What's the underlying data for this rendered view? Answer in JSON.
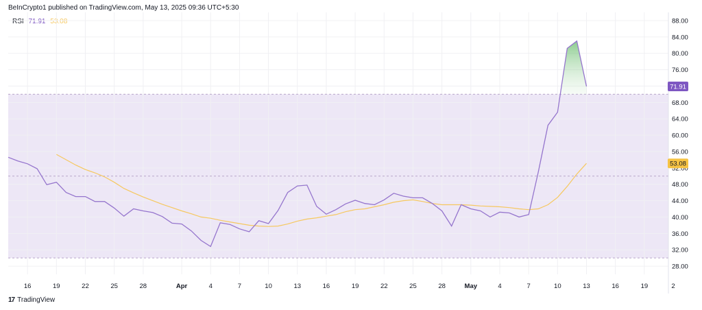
{
  "header": {
    "publisher": "BeInCrypto1 published on TradingView.com, May 13, 2025 09:36 UTC+5:30"
  },
  "legend": {
    "name": "RSI",
    "rsi_value": "71.91",
    "ma_value": "53.08"
  },
  "footer": {
    "logo": "17",
    "brand": "TradingView"
  },
  "colors": {
    "rsi": "#7e57c2",
    "ma": "#f6c85f",
    "band": "#ede7f6",
    "grid": "#f0f0f3",
    "badge_ma": "#f6c343"
  },
  "chart_data": {
    "type": "line",
    "ylim": [
      26,
      90
    ],
    "yticks": [
      28,
      32,
      36,
      40,
      44,
      48,
      52,
      56,
      60,
      64,
      68,
      72,
      76,
      80,
      84,
      88
    ],
    "ytick_labels": [
      "28.00",
      "32.00",
      "36.00",
      "40.00",
      "44.00",
      "48.00",
      "52.00",
      "56.00",
      "60.00",
      "64.00",
      "68.00",
      "72.00",
      "76.00",
      "80.00",
      "84.00",
      "88.00"
    ],
    "bands": {
      "upper": 70,
      "middle": 50,
      "lower": 30
    },
    "xlim": [
      0,
      68.5
    ],
    "xticks": [
      {
        "x": 2,
        "label": "16"
      },
      {
        "x": 5,
        "label": "19"
      },
      {
        "x": 8,
        "label": "22"
      },
      {
        "x": 11,
        "label": "25"
      },
      {
        "x": 14,
        "label": "28"
      },
      {
        "x": 18,
        "label": "Apr"
      },
      {
        "x": 21,
        "label": "4"
      },
      {
        "x": 24,
        "label": "7"
      },
      {
        "x": 27,
        "label": "10"
      },
      {
        "x": 30,
        "label": "13"
      },
      {
        "x": 33,
        "label": "16"
      },
      {
        "x": 36,
        "label": "19"
      },
      {
        "x": 39,
        "label": "22"
      },
      {
        "x": 42,
        "label": "25"
      },
      {
        "x": 45,
        "label": "28"
      },
      {
        "x": 48,
        "label": "May"
      },
      {
        "x": 51,
        "label": "4"
      },
      {
        "x": 54,
        "label": "7"
      },
      {
        "x": 57,
        "label": "10"
      },
      {
        "x": 60,
        "label": "13"
      },
      {
        "x": 63,
        "label": "16"
      },
      {
        "x": 66,
        "label": "19"
      },
      {
        "x": 69,
        "label": "2"
      }
    ],
    "series": [
      {
        "name": "RSI",
        "x": [
          0,
          1,
          2,
          3,
          4,
          5,
          6,
          7,
          8,
          9,
          10,
          11,
          12,
          13,
          14,
          15,
          16,
          17,
          18,
          19,
          20,
          21,
          22,
          23,
          24,
          25,
          26,
          27,
          28,
          29,
          30,
          31,
          32,
          33,
          34,
          35,
          36,
          37,
          38,
          39,
          40,
          41,
          42,
          43,
          44,
          45,
          46,
          47,
          48,
          49,
          50,
          51,
          52,
          53,
          54,
          55,
          56,
          57,
          58,
          59,
          60
        ],
        "values": [
          54.6,
          53.7,
          53.0,
          51.8,
          47.9,
          48.5,
          46.0,
          45.0,
          45.0,
          43.8,
          43.8,
          42.2,
          40.2,
          42.0,
          41.5,
          41.1,
          40.1,
          38.5,
          38.3,
          36.6,
          34.3,
          32.8,
          38.6,
          38.2,
          37.1,
          36.4,
          39.1,
          38.4,
          41.6,
          46.0,
          47.6,
          47.8,
          42.6,
          40.7,
          41.8,
          43.2,
          44.1,
          43.3,
          43.0,
          44.2,
          45.8,
          45.1,
          44.7,
          44.7,
          43.3,
          41.5,
          37.8,
          43.0,
          42.0,
          41.5,
          40.0,
          41.2,
          41.0,
          40.0,
          40.6,
          51.0,
          62.4,
          65.6,
          81.2,
          83.0,
          71.9
        ]
      },
      {
        "name": "MA",
        "x": [
          5,
          6,
          7,
          8,
          9,
          10,
          11,
          12,
          13,
          14,
          15,
          16,
          17,
          18,
          19,
          20,
          21,
          22,
          23,
          24,
          25,
          26,
          27,
          28,
          29,
          30,
          31,
          32,
          33,
          34,
          35,
          36,
          37,
          38,
          39,
          40,
          41,
          42,
          43,
          44,
          45,
          46,
          47,
          48,
          49,
          50,
          51,
          52,
          53,
          54,
          55,
          56,
          57,
          58,
          59,
          60
        ],
        "values": [
          55.3,
          54.0,
          52.7,
          51.6,
          50.8,
          49.8,
          48.5,
          47.0,
          45.9,
          44.9,
          44.0,
          43.1,
          42.3,
          41.5,
          40.8,
          40.0,
          39.7,
          39.2,
          38.8,
          38.4,
          38.0,
          37.8,
          37.7,
          37.8,
          38.3,
          39.0,
          39.5,
          39.8,
          40.2,
          40.6,
          41.3,
          41.8,
          42.0,
          42.5,
          43.0,
          43.6,
          44.0,
          44.2,
          43.8,
          43.3,
          43.0,
          43.0,
          43.0,
          42.9,
          42.7,
          42.6,
          42.5,
          42.3,
          42.0,
          41.8,
          42.0,
          43.0,
          44.8,
          47.5,
          50.5,
          53.1
        ]
      }
    ]
  }
}
